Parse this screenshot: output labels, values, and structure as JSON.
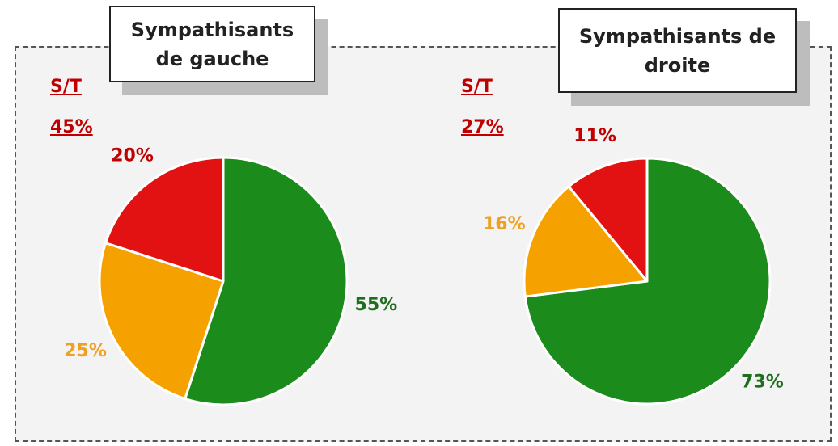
{
  "chart_data": [
    {
      "type": "pie",
      "title": "Sympathisants de gauche",
      "values": [
        55,
        25,
        20
      ],
      "value_labels": [
        "55%",
        "25%",
        "20%"
      ],
      "colors": [
        "#1b8c1b",
        "#f5a100",
        "#e31212"
      ],
      "label_colors": [
        "#1e6e1e",
        "#f0a020",
        "#c00000"
      ],
      "subtotal": {
        "label": "S/T",
        "value": 45,
        "value_label": "45%"
      }
    },
    {
      "type": "pie",
      "title": "Sympathisants de droite",
      "values": [
        73,
        16,
        11
      ],
      "value_labels": [
        "73%",
        "16%",
        "11%"
      ],
      "colors": [
        "#1b8c1b",
        "#f5a100",
        "#e31212"
      ],
      "label_colors": [
        "#1e6e1e",
        "#f0a020",
        "#c00000"
      ],
      "subtotal": {
        "label": "S/T",
        "value": 27,
        "value_label": "27%"
      }
    }
  ]
}
